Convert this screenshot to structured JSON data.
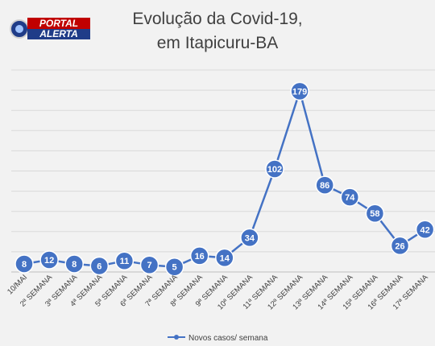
{
  "logo": {
    "line1": "PORTAL",
    "line2": "ALERTA"
  },
  "colors": {
    "line": "#4472c4",
    "marker": "#4472c4",
    "grid": "#d9d9d9",
    "background": "#f2f2f2"
  },
  "chart_data": {
    "type": "line",
    "title": "Evolução da Covid-19,",
    "subtitle": "em Itapicuru-BA",
    "categories": [
      "10/MAI",
      "2ª SEMANA",
      "3ª SEMANA",
      "4ª SEMANA",
      "5ª SEMANA",
      "6ª SEMANA",
      "7ª SEMANA",
      "8ª SEMANA",
      "9ª SEMANA",
      "10ª SEMANA",
      "11ª SEMANA",
      "12ª SEMANA",
      "13ª SEMANA",
      "14ª SEMANA",
      "15ª SEMANA",
      "16ª SEMANA",
      "17ª SEMANA"
    ],
    "series": [
      {
        "name": "Novos casos/ semana",
        "values": [
          8,
          12,
          8,
          6,
          11,
          7,
          5,
          16,
          14,
          34,
          102,
          179,
          86,
          74,
          58,
          26,
          42
        ]
      }
    ],
    "ylim": [
      0,
      200
    ],
    "grid": true,
    "data_labels": true,
    "legend_position": "bottom",
    "y_tick_labels_shown": false
  }
}
